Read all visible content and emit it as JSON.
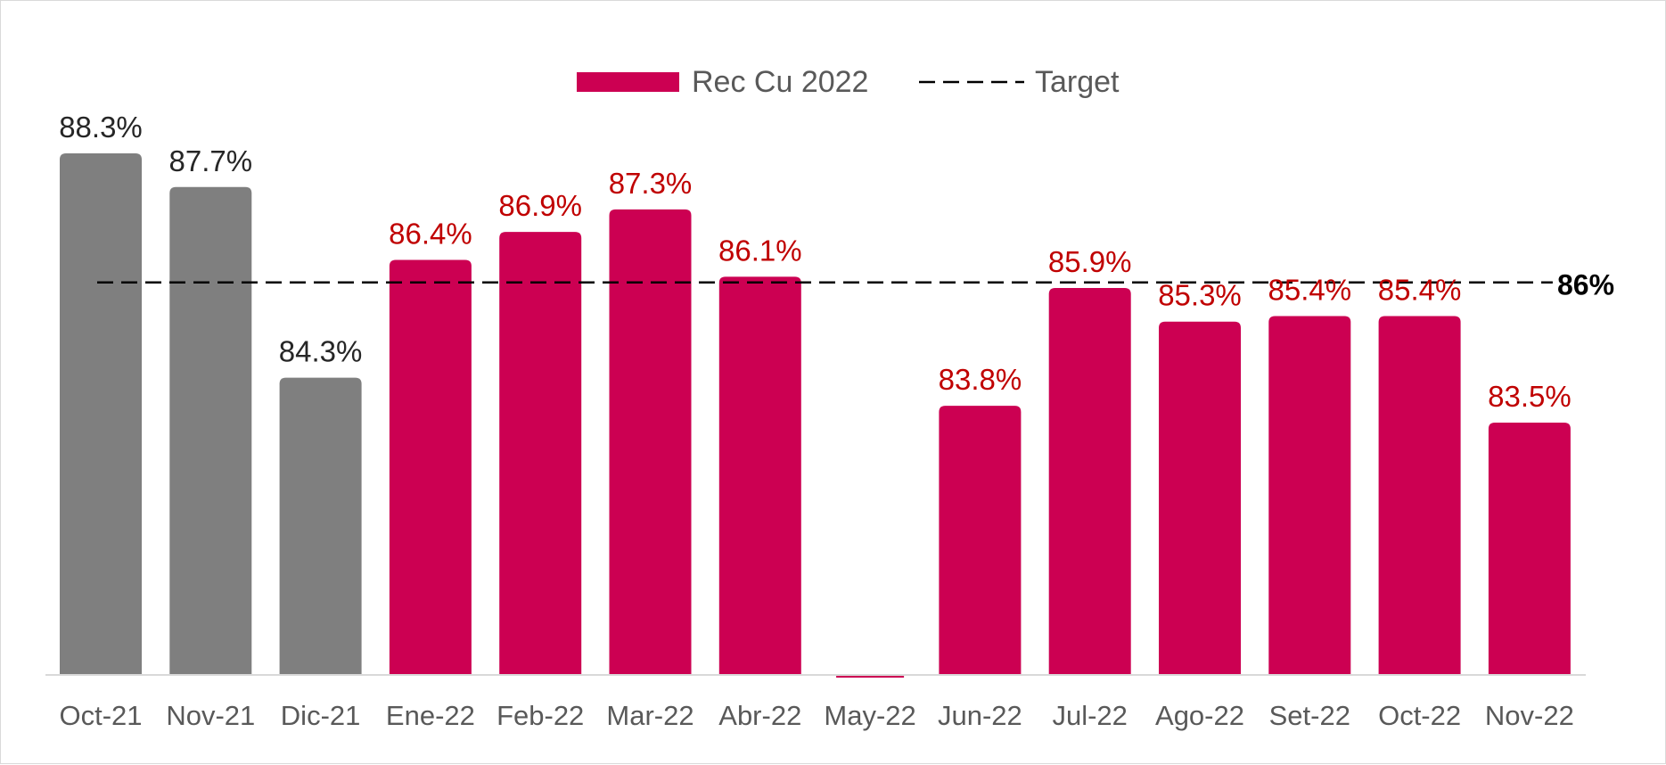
{
  "chart_data": {
    "type": "bar",
    "title": "",
    "xlabel": "",
    "ylabel": "",
    "ylim": [
      79.0,
      89.0
    ],
    "categories": [
      "Oct-21",
      "Nov-21",
      "Dic-21",
      "Ene-22",
      "Feb-22",
      "Mar-22",
      "Abr-22",
      "May-22",
      "Jun-22",
      "Jul-22",
      "Ago-22",
      "Set-22",
      "Oct-22",
      "Nov-22"
    ],
    "series": [
      {
        "name": "Rec Cu 2022",
        "values": [
          88.3,
          87.7,
          84.3,
          86.4,
          86.9,
          87.3,
          86.1,
          null,
          83.8,
          85.9,
          85.3,
          85.4,
          85.4,
          83.5
        ],
        "labels": [
          "88.3%",
          "87.7%",
          "84.3%",
          "86.4%",
          "86.9%",
          "87.3%",
          "86.1%",
          "",
          "83.8%",
          "85.9%",
          "85.3%",
          "85.4%",
          "85.4%",
          "83.5%"
        ],
        "colors": [
          "#7f7f7f",
          "#7f7f7f",
          "#7f7f7f",
          "#cc0052",
          "#cc0052",
          "#cc0052",
          "#cc0052",
          "#cc0052",
          "#cc0052",
          "#cc0052",
          "#cc0052",
          "#cc0052",
          "#cc0052",
          "#cc0052"
        ],
        "label_colors": [
          "#262626",
          "#262626",
          "#262626",
          "#c00000",
          "#c00000",
          "#c00000",
          "#c00000",
          "#c00000",
          "#c00000",
          "#c00000",
          "#c00000",
          "#c00000",
          "#c00000",
          "#c00000"
        ]
      }
    ],
    "target": {
      "name": "Target",
      "value": 86,
      "label": "86%",
      "style": "dashed",
      "color": "#000000"
    },
    "legend": {
      "position": "top-center",
      "entries": [
        "Rec Cu 2022",
        "Target"
      ]
    },
    "grid": false
  },
  "legend": {
    "series_label": "Rec Cu 2022",
    "target_label": "Target"
  },
  "colors": {
    "bar_2021": "#7f7f7f",
    "bar_2022": "#cc0052",
    "label_2022": "#c00000",
    "axis": "#d9d9d9",
    "text": "#595959"
  }
}
